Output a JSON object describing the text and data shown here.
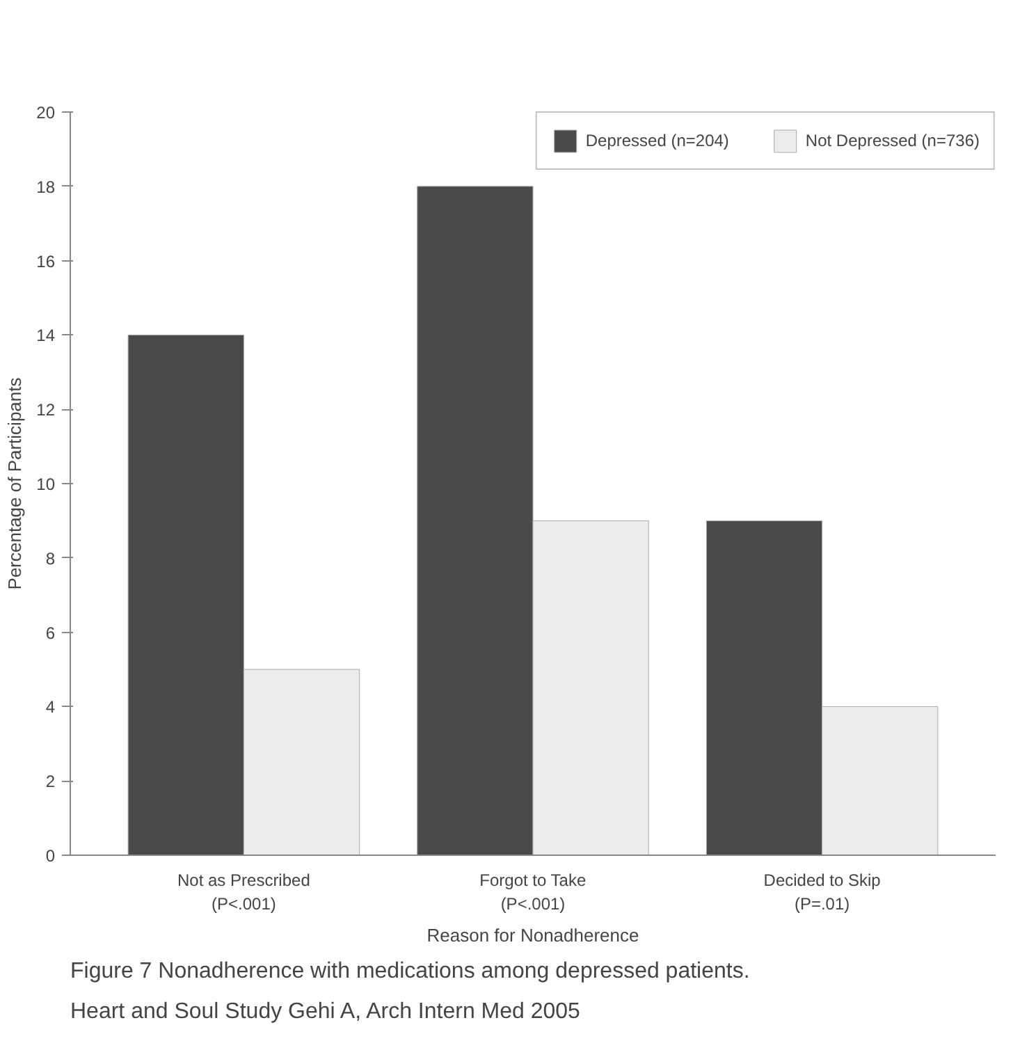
{
  "chart_data": {
    "type": "bar",
    "xlabel": "Reason for Nonadherence",
    "ylabel": "Percentage of Participants",
    "categories": [
      "Not as Prescribed\n(P<.001)",
      "Forgot to Take\n(P<.001)",
      "Decided to Skip\n(P=.01)"
    ],
    "series": [
      {
        "name": "Depressed (n=204)",
        "color": "#4a4a4a",
        "values": [
          14,
          18,
          9
        ]
      },
      {
        "name": "Not Depressed (n=736)",
        "color": "#ececec",
        "values": [
          5,
          9,
          4
        ]
      }
    ],
    "ylim": [
      0,
      20
    ],
    "yticks": [
      0,
      2,
      4,
      6,
      8,
      10,
      12,
      14,
      16,
      18,
      20
    ],
    "grid": false,
    "legend": "top right",
    "annotations": [
      "Figure 7 Nonadherence with medications among depressed patients.",
      "Heart and Soul Study Gehi A, Arch Intern Med 2005"
    ]
  }
}
